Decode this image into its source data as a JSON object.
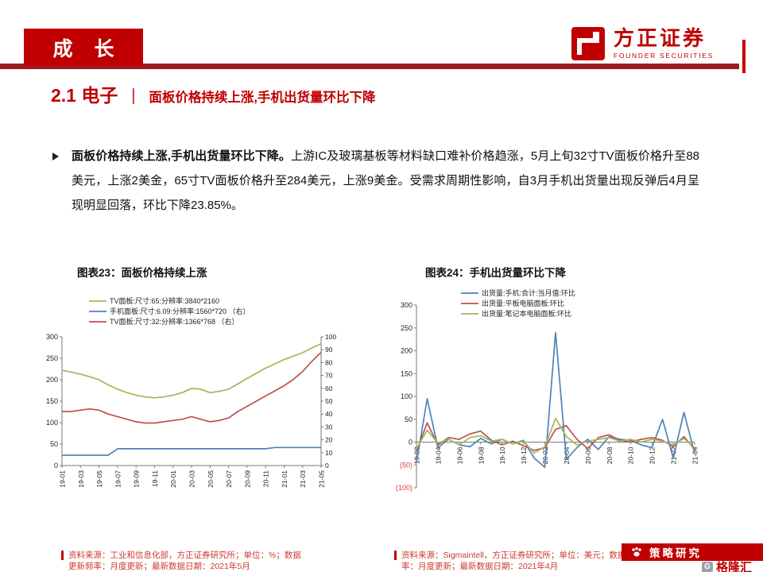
{
  "header": {
    "section_label": "成 长",
    "logo": {
      "cn": "方正证券",
      "en": "FOUNDER SECURITIES"
    }
  },
  "title": {
    "number": "2.1 电子",
    "separator": "｜",
    "subtitle": "面板价格持续上涨,手机出货量环比下降"
  },
  "body": {
    "lead_bold": "面板价格持续上涨,手机出货量环比下降。",
    "text": "上游IC及玻璃基板等材料缺口难补价格趋涨，5月上旬32寸TV面板价格升至88美元，上涨2美金，65寸TV面板价格升至284美元，上涨9美金。受需求周期性影响，自3月手机出货量出现反弹后4月呈现明显回落，环比下降23.85%。"
  },
  "chart_data": [
    {
      "type": "line",
      "title": "图表23：面板价格持续上涨",
      "x": [
        "19-01",
        "19-02",
        "19-03",
        "19-04",
        "19-05",
        "19-06",
        "19-07",
        "19-08",
        "19-09",
        "19-10",
        "19-11",
        "19-12",
        "20-01",
        "20-02",
        "20-03",
        "20-04",
        "20-05",
        "20-06",
        "20-07",
        "20-08",
        "20-09",
        "20-10",
        "20-11",
        "20-12",
        "21-01",
        "21-02",
        "21-03",
        "21-04",
        "21-05"
      ],
      "left_axis": {
        "min": 0,
        "max": 300,
        "step": 50
      },
      "right_axis": {
        "min": 0,
        "max": 100,
        "step": 10
      },
      "legend_position": "top",
      "grid": false,
      "series": [
        {
          "name": "TV面板:尺寸:65:分辨率:3840*2160",
          "color": "#9BBB59",
          "axis": "left",
          "values": [
            222,
            218,
            213,
            207,
            200,
            188,
            178,
            170,
            164,
            160,
            158,
            160,
            164,
            170,
            180,
            178,
            170,
            173,
            178,
            190,
            203,
            215,
            227,
            237,
            247,
            255,
            263,
            274,
            284
          ]
        },
        {
          "name": "手机面板:尺寸:6.09:分辨率:1560*720 （右）",
          "color": "#4F81BD",
          "axis": "right",
          "values": [
            8,
            8,
            8,
            8,
            8,
            8,
            13,
            13,
            13,
            13,
            13,
            13,
            13,
            13,
            13,
            13,
            13,
            13,
            13,
            13,
            13,
            13,
            13,
            14,
            14,
            14,
            14,
            14,
            14
          ]
        },
        {
          "name": "TV面板:尺寸:32:分辨率:1366*768 （右）",
          "color": "#C0504D",
          "axis": "right",
          "values": [
            42,
            42,
            43,
            44,
            43,
            40,
            38,
            36,
            34,
            33,
            33,
            34,
            35,
            36,
            38,
            36,
            34,
            35,
            37,
            42,
            46,
            50,
            54,
            58,
            62,
            67,
            73,
            81,
            88
          ]
        }
      ]
    },
    {
      "type": "line",
      "title": "图表24：手机出货量环比下降",
      "x": [
        "19-02",
        "19-03",
        "19-04",
        "19-05",
        "19-06",
        "19-07",
        "19-08",
        "19-09",
        "19-10",
        "19-11",
        "19-12",
        "20-01",
        "20-02",
        "20-03",
        "20-04",
        "20-05",
        "20-06",
        "20-07",
        "20-08",
        "20-09",
        "20-10",
        "20-11",
        "20-12",
        "21-01",
        "21-02",
        "21-03",
        "21-04"
      ],
      "left_axis": {
        "min": -100,
        "max": 300,
        "step": 50
      },
      "negative_labels": "paren_red",
      "legend_position": "top",
      "grid": false,
      "series": [
        {
          "name": "出货量:手机:合计:当月值:环比",
          "color": "#4F81BD",
          "axis": "left",
          "values": [
            -45,
            95,
            -12,
            6,
            -6,
            -10,
            8,
            -4,
            6,
            -4,
            4,
            -35,
            -55,
            240,
            -38,
            -12,
            6,
            -16,
            12,
            6,
            4,
            -6,
            -12,
            50,
            -35,
            65,
            -24
          ]
        },
        {
          "name": "出货量:平板电脑面板:环比",
          "color": "#C0504D",
          "axis": "left",
          "values": [
            -20,
            42,
            -6,
            10,
            6,
            18,
            24,
            4,
            -6,
            2,
            -8,
            -18,
            -12,
            28,
            36,
            6,
            -14,
            10,
            16,
            4,
            0,
            6,
            10,
            4,
            -10,
            12,
            -16
          ]
        },
        {
          "name": "出货量:笔记本电脑面板:环比",
          "color": "#9BBB59",
          "axis": "left",
          "values": [
            -14,
            26,
            -2,
            6,
            -6,
            10,
            14,
            2,
            6,
            -4,
            2,
            -24,
            -10,
            52,
            12,
            -6,
            2,
            6,
            10,
            2,
            6,
            0,
            6,
            2,
            -6,
            8,
            -12
          ]
        }
      ]
    }
  ],
  "footer": {
    "left_source": "资料来源：工业和信息化部，方正证券研究所；单位：%；数据更新频率：月度更新；最新数据日期：2021年5月",
    "right_source": "资料来源：Sigmaintell，方正证券研究所；单位：美元；数据更新频率：月度更新；最新数据日期：2021年4月",
    "watermark": {
      "strategy": "策略研究",
      "brand": "格隆汇",
      "brand_initial": "G"
    }
  },
  "colors": {
    "brand_red": "#C00000",
    "rule_red": "#9B1B1F",
    "source_red": "#CB3A2E",
    "negative_label_red": "#E03C31",
    "series_blue": "#4F81BD",
    "series_red": "#C0504D",
    "series_green": "#9BBB59"
  }
}
